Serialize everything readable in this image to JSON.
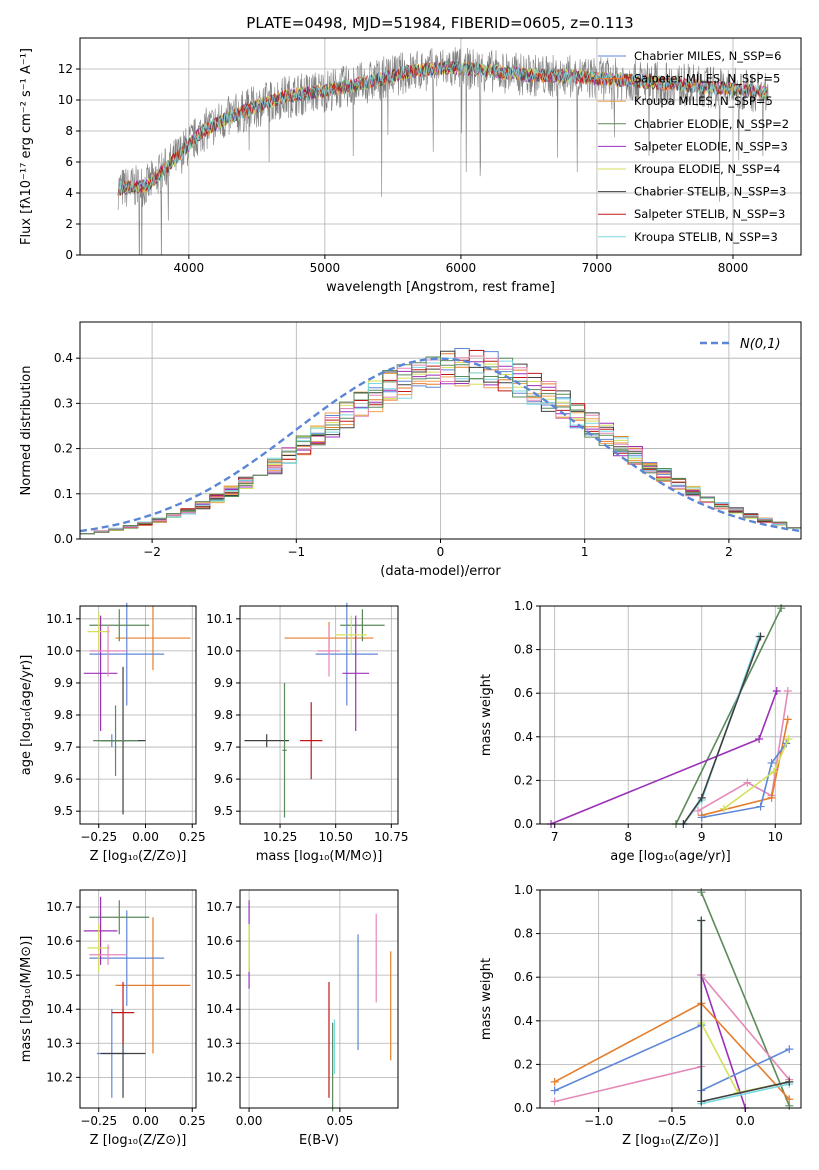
{
  "title": "PLATE=0498, MJD=51984, FIBERID=0605, z=0.113",
  "colors": {
    "grid": "#b0b0b0",
    "spectrum_data": "#808080",
    "gaussian": "#5b86d6"
  },
  "chart_data": [
    {
      "id": "spectrum",
      "type": "line",
      "xlabel": "wavelength [Angstrom, rest frame]",
      "ylabel": "Flux [fλ10⁻¹⁷ erg cm⁻² s⁻¹ A⁻¹]",
      "xlim": [
        3200,
        8500
      ],
      "ylim": [
        0,
        14
      ],
      "xticks": [
        4000,
        5000,
        6000,
        7000,
        8000
      ],
      "yticks": [
        0,
        2,
        4,
        6,
        8,
        10,
        12
      ],
      "legend_position": "right",
      "legend": [
        {
          "label": "Chabrier MILES, N_SSP=6",
          "color": "#5f87d8"
        },
        {
          "label": "Salpeter MILES, N_SSP=5",
          "color": "#e57e2c"
        },
        {
          "label": "Kroupa MILES, N_SSP=5",
          "color": "#f0a050"
        },
        {
          "label": "Chabrier ELODIE, N_SSP=2",
          "color": "#5b8a5b"
        },
        {
          "label": "Salpeter ELODIE, N_SSP=3",
          "color": "#9b30b8"
        },
        {
          "label": "Kroupa ELODIE, N_SSP=4",
          "color": "#d5e05a"
        },
        {
          "label": "Chabrier STELIB, N_SSP=3",
          "color": "#404040"
        },
        {
          "label": "Salpeter STELIB, N_SSP=3",
          "color": "#c01818"
        },
        {
          "label": "Kroupa STELIB, N_SSP=3",
          "color": "#7ad8e0"
        }
      ],
      "continuum": [
        {
          "x": 3500,
          "y": 4.3
        },
        {
          "x": 3700,
          "y": 4.5
        },
        {
          "x": 3900,
          "y": 6.2
        },
        {
          "x": 4100,
          "y": 8.0
        },
        {
          "x": 4300,
          "y": 8.9
        },
        {
          "x": 4500,
          "y": 9.6
        },
        {
          "x": 4700,
          "y": 10.2
        },
        {
          "x": 5000,
          "y": 10.6
        },
        {
          "x": 5300,
          "y": 11.1
        },
        {
          "x": 5600,
          "y": 11.8
        },
        {
          "x": 5900,
          "y": 12.1
        },
        {
          "x": 6200,
          "y": 11.9
        },
        {
          "x": 6500,
          "y": 11.6
        },
        {
          "x": 6800,
          "y": 11.5
        },
        {
          "x": 7200,
          "y": 11.3
        },
        {
          "x": 7600,
          "y": 11.0
        },
        {
          "x": 8000,
          "y": 10.7
        },
        {
          "x": 8250,
          "y": 10.5
        }
      ]
    },
    {
      "id": "residuals",
      "type": "line",
      "xlabel": "(data-model)/error",
      "ylabel": "Normed distribution",
      "xlim": [
        -2.5,
        2.5
      ],
      "ylim": [
        0,
        0.48
      ],
      "xticks": [
        -2,
        -1,
        0,
        1,
        2
      ],
      "yticks": [
        0.0,
        0.1,
        0.2,
        0.3,
        0.4
      ],
      "legend": [
        {
          "label": "N(0,1)",
          "color": "#5b86d6"
        }
      ],
      "legend_position": "top-right",
      "bin_edges_start": -2.5,
      "bin_width": 0.1
    },
    {
      "id": "age-vs-Z",
      "type": "scatter",
      "xlabel": "Z [log₁₀(Z/Z⊙)]",
      "ylabel": "age  [log₁₀(age/yr)]",
      "xlim": [
        -0.35,
        0.27
      ],
      "ylim": [
        9.46,
        10.14
      ],
      "xticks": [
        -0.25,
        0.0,
        0.25
      ],
      "yticks": [
        9.5,
        9.6,
        9.7,
        9.8,
        9.9,
        10.0,
        10.1
      ],
      "points": [
        {
          "x": -0.18,
          "xerr": 0.08,
          "y": 9.72,
          "yerr": 0.02,
          "color": "#5f87d8"
        },
        {
          "x": 0.04,
          "xerr": 0.2,
          "y": 10.04,
          "yerr": 0.1,
          "color": "#e57e2c"
        },
        {
          "x": -0.1,
          "xerr": 0.2,
          "y": 9.99,
          "yerr": 0.16,
          "color": "#5f87d8"
        },
        {
          "x": -0.14,
          "xerr": 0.16,
          "y": 10.08,
          "yerr": 0.05,
          "color": "#5b8a5b"
        },
        {
          "x": -0.24,
          "xerr": 0.09,
          "y": 9.93,
          "yerr": 0.18,
          "color": "#9b30b8"
        },
        {
          "x": -0.25,
          "xerr": 0.06,
          "y": 10.06,
          "yerr": 0.06,
          "color": "#d5e05a"
        },
        {
          "x": -0.12,
          "xerr": 0.12,
          "y": 9.72,
          "yerr": 0.23,
          "color": "#404040"
        },
        {
          "x": -0.16,
          "xerr": 0.12,
          "y": 9.72,
          "yerr": 0.11,
          "color": "#5b8a5b"
        },
        {
          "x": -0.2,
          "xerr": 0.1,
          "y": 10.0,
          "yerr": 0.08,
          "color": "#e48ab8"
        }
      ]
    },
    {
      "id": "age-vs-mass",
      "type": "scatter",
      "xlabel": "mass [log₁₀(M/M⊙)]",
      "ylabel": "",
      "xlim": [
        10.07,
        10.78
      ],
      "ylim": [
        9.46,
        10.14
      ],
      "xticks": [
        10.25,
        10.5,
        10.75
      ],
      "yticks": [
        9.5,
        9.6,
        9.7,
        9.8,
        9.9,
        10.0,
        10.1
      ],
      "points": [
        {
          "x": 10.19,
          "xerr": 0.1,
          "y": 9.72,
          "yerr": 0.02,
          "color": "#404040"
        },
        {
          "x": 10.47,
          "xerr": 0.2,
          "y": 10.04,
          "yerr": 0.05,
          "color": "#e57e2c"
        },
        {
          "x": 10.55,
          "xerr": 0.14,
          "y": 9.99,
          "yerr": 0.16,
          "color": "#5f87d8"
        },
        {
          "x": 10.62,
          "xerr": 0.1,
          "y": 10.08,
          "yerr": 0.05,
          "color": "#5b8a5b"
        },
        {
          "x": 10.59,
          "xerr": 0.06,
          "y": 9.93,
          "yerr": 0.18,
          "color": "#9b30b8"
        },
        {
          "x": 10.57,
          "xerr": 0.07,
          "y": 10.05,
          "yerr": 0.06,
          "color": "#d5e05a"
        },
        {
          "x": 10.27,
          "xerr": 0.01,
          "y": 9.69,
          "yerr": 0.21,
          "color": "#5b8a5b"
        },
        {
          "x": 10.39,
          "xerr": 0.05,
          "y": 9.72,
          "yerr": 0.12,
          "color": "#c01818"
        },
        {
          "x": 10.47,
          "xerr": 0.05,
          "y": 10.0,
          "yerr": 0.08,
          "color": "#e48ab8"
        }
      ]
    },
    {
      "id": "mass-weight-vs-age",
      "type": "line",
      "xlabel": "age  [log₁₀(age/yr)]",
      "ylabel": "mass weight",
      "xlim": [
        6.8,
        10.35
      ],
      "ylim": [
        0,
        1.0
      ],
      "xticks": [
        7,
        8,
        9,
        10
      ],
      "yticks": [
        0.0,
        0.2,
        0.4,
        0.6,
        0.8,
        1.0
      ],
      "series": [
        {
          "color": "#5b8a5b",
          "x": [
            8.65,
            10.08
          ],
          "y": [
            0.0,
            0.99
          ]
        },
        {
          "color": "#9b30b8",
          "x": [
            6.95,
            9.78,
            10.02
          ],
          "y": [
            0.0,
            0.39,
            0.61
          ]
        },
        {
          "color": "#7ad8e0",
          "x": [
            8.75,
            9.0,
            9.78
          ],
          "y": [
            0.0,
            0.11,
            0.86
          ]
        },
        {
          "color": "#404040",
          "x": [
            8.75,
            9.0,
            9.8
          ],
          "y": [
            0.0,
            0.12,
            0.86
          ]
        },
        {
          "color": "#e48ab8",
          "x": [
            8.95,
            9.62,
            9.95,
            10.17
          ],
          "y": [
            0.06,
            0.19,
            0.13,
            0.61
          ]
        },
        {
          "color": "#e57e2c",
          "x": [
            9.0,
            9.95,
            10.17
          ],
          "y": [
            0.04,
            0.12,
            0.48
          ]
        },
        {
          "color": "#5f87d8",
          "x": [
            9.0,
            9.8,
            9.95,
            10.15
          ],
          "y": [
            0.03,
            0.08,
            0.28,
            0.37
          ]
        },
        {
          "color": "#d5e05a",
          "x": [
            9.3,
            9.98,
            10.18
          ],
          "y": [
            0.07,
            0.24,
            0.39
          ]
        }
      ]
    },
    {
      "id": "mass-vs-Z",
      "type": "scatter",
      "xlabel": "Z [log₁₀(Z/Z⊙)]",
      "ylabel": "mass [log₁₀(M/M⊙)]",
      "xlim": [
        -0.35,
        0.27
      ],
      "ylim": [
        10.11,
        10.75
      ],
      "xticks": [
        -0.25,
        0.0,
        0.25
      ],
      "yticks": [
        10.2,
        10.3,
        10.4,
        10.5,
        10.6,
        10.7
      ],
      "points": [
        {
          "x": -0.18,
          "xerr": 0.08,
          "y": 10.27,
          "yerr": 0.13,
          "color": "#5f87d8"
        },
        {
          "x": 0.04,
          "xerr": 0.2,
          "y": 10.47,
          "yerr": 0.2,
          "color": "#e57e2c"
        },
        {
          "x": -0.1,
          "xerr": 0.2,
          "y": 10.55,
          "yerr": 0.14,
          "color": "#5f87d8"
        },
        {
          "x": -0.14,
          "xerr": 0.16,
          "y": 10.67,
          "yerr": 0.05,
          "color": "#5b8a5b"
        },
        {
          "x": -0.24,
          "xerr": 0.09,
          "y": 10.63,
          "yerr": 0.1,
          "color": "#9b30b8"
        },
        {
          "x": -0.25,
          "xerr": 0.06,
          "y": 10.58,
          "yerr": 0.07,
          "color": "#d5e05a"
        },
        {
          "x": -0.12,
          "xerr": 0.12,
          "y": 10.27,
          "yerr": 0.13,
          "color": "#404040"
        },
        {
          "x": -0.12,
          "xerr": 0.06,
          "y": 10.39,
          "yerr": 0.09,
          "color": "#c01818"
        },
        {
          "x": -0.2,
          "xerr": 0.1,
          "y": 10.56,
          "yerr": 0.03,
          "color": "#e48ab8"
        }
      ]
    },
    {
      "id": "mass-vs-EBV",
      "type": "scatter",
      "xlabel": "E(B-V)",
      "ylabel": "",
      "xlim": [
        -0.005,
        0.082
      ],
      "ylim": [
        10.11,
        10.75
      ],
      "xticks": [
        0.0,
        0.05
      ],
      "yticks": [
        10.2,
        10.3,
        10.4,
        10.5,
        10.6,
        10.7
      ],
      "points": [
        {
          "x": 0.0,
          "y": 10.59,
          "yerr": 0.13,
          "color": "#9b30b8"
        },
        {
          "x": 0.0,
          "y": 10.58,
          "yerr": 0.07,
          "color": "#d5e05a"
        },
        {
          "x": 0.044,
          "y": 10.31,
          "yerr": 0.17,
          "color": "#c01818"
        },
        {
          "x": 0.046,
          "y": 10.23,
          "yerr": 0.13,
          "color": "#5b8a5b"
        },
        {
          "x": 0.047,
          "y": 10.29,
          "yerr": 0.08,
          "color": "#7ad8e0"
        },
        {
          "x": 0.06,
          "y": 10.45,
          "yerr": 0.17,
          "color": "#5f87d8"
        },
        {
          "x": 0.07,
          "y": 10.55,
          "yerr": 0.13,
          "color": "#e48ab8"
        },
        {
          "x": 0.078,
          "y": 10.41,
          "yerr": 0.16,
          "color": "#e57e2c"
        }
      ]
    },
    {
      "id": "mass-weight-vs-Z",
      "type": "line",
      "xlabel": "Z [log₁₀(Z/Z⊙)]",
      "ylabel": "mass weight",
      "xlim": [
        -1.4,
        0.38
      ],
      "ylim": [
        0,
        1.0
      ],
      "xticks": [
        -1.0,
        -0.5,
        0.0
      ],
      "yticks": [
        0.0,
        0.2,
        0.4,
        0.6,
        0.8,
        1.0
      ],
      "series": [
        {
          "color": "#5b8a5b",
          "x": [
            -0.3,
            0.3
          ],
          "y": [
            0.99,
            0.01
          ]
        },
        {
          "color": "#9b30b8",
          "x": [
            -0.3,
            0.0
          ],
          "y": [
            0.61,
            0.0
          ]
        },
        {
          "color": "#e48ab8",
          "x": [
            -1.3,
            -0.3,
            -0.3,
            0.3
          ],
          "y": [
            0.03,
            0.19,
            0.61,
            0.13
          ]
        },
        {
          "color": "#e57e2c",
          "x": [
            -1.3,
            -0.3,
            0.3
          ],
          "y": [
            0.12,
            0.48,
            0.04
          ]
        },
        {
          "color": "#5f87d8",
          "x": [
            -1.3,
            -0.3,
            -0.3,
            0.3
          ],
          "y": [
            0.08,
            0.38,
            0.08,
            0.27
          ]
        },
        {
          "color": "#d5e05a",
          "x": [
            -0.3,
            -0.05,
            0.3
          ],
          "y": [
            0.39,
            0.07,
            0.12
          ]
        },
        {
          "color": "#7ad8e0",
          "x": [
            -0.3,
            -0.3,
            0.3
          ],
          "y": [
            0.86,
            0.02,
            0.11
          ]
        },
        {
          "color": "#404040",
          "x": [
            -0.3,
            -0.3,
            0.3
          ],
          "y": [
            0.86,
            0.03,
            0.12
          ]
        }
      ]
    }
  ]
}
